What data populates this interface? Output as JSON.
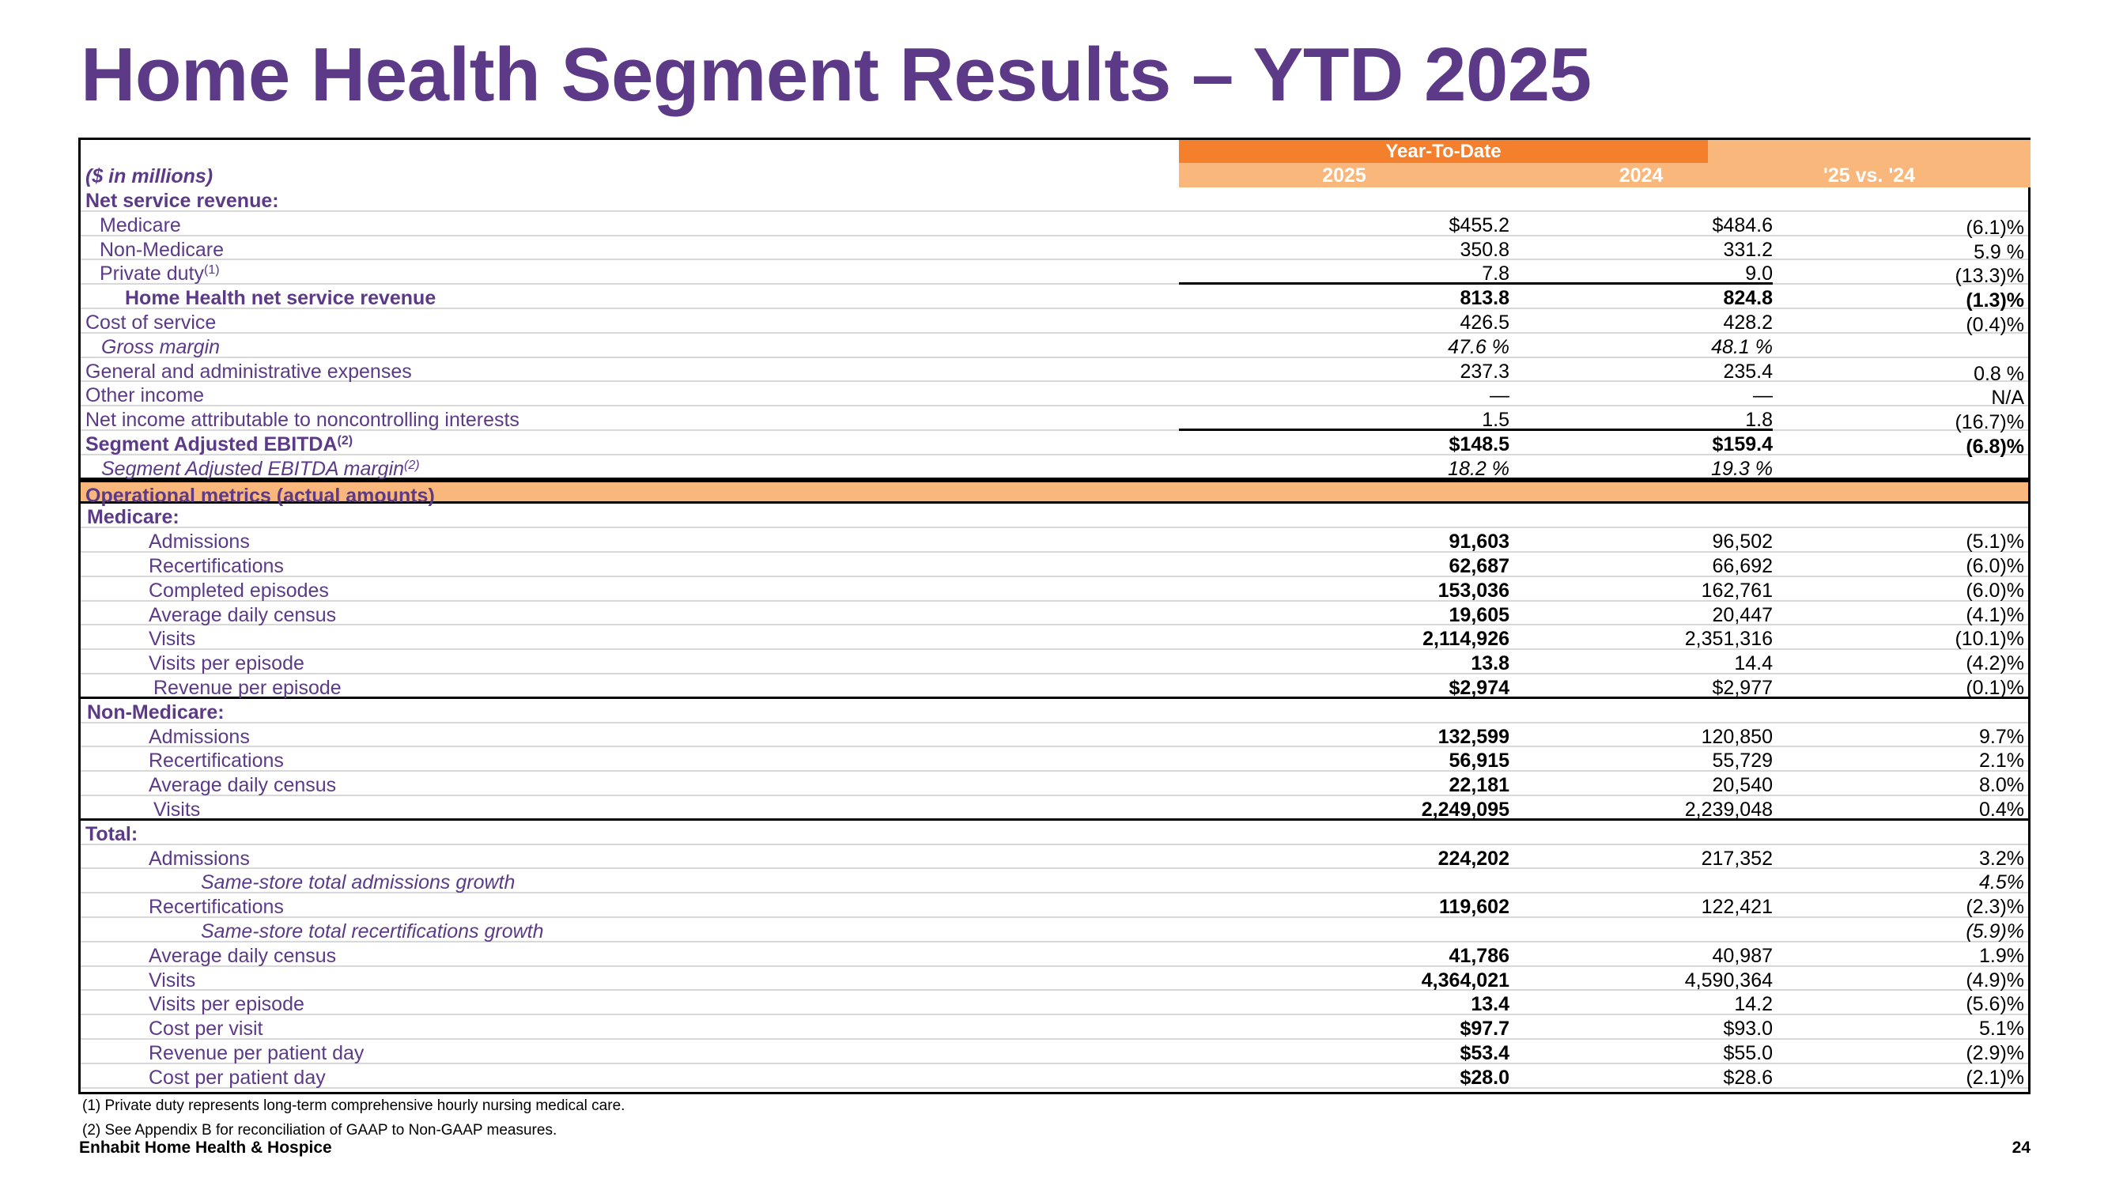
{
  "title": "Home Health Segment Results – YTD 2025",
  "header": {
    "units": "($ in millions)",
    "period": "Year-To-Date",
    "col_2025": "2025",
    "col_2024": "2024",
    "col_change": "'25 vs. '24"
  },
  "rows": [
    {
      "label": "Net service revenue:",
      "v2025": "",
      "v2024": "",
      "chg": ""
    },
    {
      "label": "Medicare",
      "v2025": "$455.2",
      "v2024": "$484.6",
      "chg": "(6.1)%"
    },
    {
      "label": "Non-Medicare",
      "v2025": "350.8",
      "v2024": "331.2",
      "chg": "5.9 %"
    },
    {
      "label": "Private duty",
      "sup": "(1)",
      "v2025": "7.8",
      "v2024": "9.0",
      "chg": "(13.3)%"
    },
    {
      "label": "Home Health net service revenue",
      "v2025": "813.8",
      "v2024": "824.8",
      "chg": "(1.3)%"
    },
    {
      "label": "Cost of service",
      "v2025": "426.5",
      "v2024": "428.2",
      "chg": "(0.4)%"
    },
    {
      "label": "Gross margin",
      "v2025": "47.6 %",
      "v2024": "48.1 %",
      "chg": ""
    },
    {
      "label": "General and administrative expenses",
      "v2025": "237.3",
      "v2024": "235.4",
      "chg": "0.8 %"
    },
    {
      "label": "Other income",
      "v2025": "—",
      "v2024": "—",
      "chg": "N/A"
    },
    {
      "label": "Net income attributable to noncontrolling interests",
      "v2025": "1.5",
      "v2024": "1.8",
      "chg": "(16.7)%"
    },
    {
      "label": "Segment Adjusted EBITDA",
      "sup": "(2)",
      "v2025": "$148.5",
      "v2024": "$159.4",
      "chg": "(6.8)%"
    },
    {
      "label": "Segment Adjusted EBITDA margin",
      "sup": "(2)",
      "v2025": "18.2 %",
      "v2024": "19.3 %",
      "chg": ""
    },
    {
      "label": "Operational metrics (actual amounts)",
      "v2025": "",
      "v2024": "",
      "chg": ""
    },
    {
      "label": "Medicare:",
      "v2025": "",
      "v2024": "",
      "chg": ""
    },
    {
      "label": "Admissions",
      "v2025": "91,603",
      "v2024": "96,502",
      "chg": "(5.1)%"
    },
    {
      "label": "Recertifications",
      "v2025": "62,687",
      "v2024": "66,692",
      "chg": "(6.0)%"
    },
    {
      "label": "Completed episodes",
      "v2025": "153,036",
      "v2024": "162,761",
      "chg": "(6.0)%"
    },
    {
      "label": "Average daily census",
      "v2025": "19,605",
      "v2024": "20,447",
      "chg": "(4.1)%"
    },
    {
      "label": "Visits",
      "v2025": "2,114,926",
      "v2024": "2,351,316",
      "chg": "(10.1)%"
    },
    {
      "label": "Visits per episode",
      "v2025": "13.8",
      "v2024": "14.4",
      "chg": "(4.2)%"
    },
    {
      "label": "Revenue per episode",
      "v2025": "$2,974",
      "v2024": "$2,977",
      "chg": "(0.1)%"
    },
    {
      "label": "Non-Medicare:",
      "v2025": "",
      "v2024": "",
      "chg": ""
    },
    {
      "label": "Admissions",
      "v2025": "132,599",
      "v2024": "120,850",
      "chg": "9.7%"
    },
    {
      "label": "Recertifications",
      "v2025": "56,915",
      "v2024": "55,729",
      "chg": "2.1%"
    },
    {
      "label": "Average daily census",
      "v2025": "22,181",
      "v2024": "20,540",
      "chg": "8.0%"
    },
    {
      "label": "Visits",
      "v2025": "2,249,095",
      "v2024": "2,239,048",
      "chg": "0.4%"
    },
    {
      "label": "Total:",
      "v2025": "",
      "v2024": "",
      "chg": ""
    },
    {
      "label": "Admissions",
      "v2025": "224,202",
      "v2024": "217,352",
      "chg": "3.2%"
    },
    {
      "label": "Same-store total admissions growth",
      "v2025": "",
      "v2024": "",
      "chg": "4.5%"
    },
    {
      "label": "Recertifications",
      "v2025": "119,602",
      "v2024": "122,421",
      "chg": "(2.3)%"
    },
    {
      "label": "Same-store total recertifications growth",
      "v2025": "",
      "v2024": "",
      "chg": "(5.9)%"
    },
    {
      "label": "Average daily census",
      "v2025": "41,786",
      "v2024": "40,987",
      "chg": "1.9%"
    },
    {
      "label": "Visits",
      "v2025": "4,364,021",
      "v2024": "4,590,364",
      "chg": "(4.9)%"
    },
    {
      "label": "Visits per episode",
      "v2025": "13.4",
      "v2024": "14.2",
      "chg": "(5.6)%"
    },
    {
      "label": "Cost per visit",
      "v2025": "$97.7",
      "v2024": "$93.0",
      "chg": "5.1%"
    },
    {
      "label": "Revenue per patient day",
      "v2025": "$53.4",
      "v2024": "$55.0",
      "chg": "(2.9)%"
    },
    {
      "label": "Cost per patient day",
      "v2025": "$28.0",
      "v2024": "$28.6",
      "chg": "(2.1)%"
    }
  ],
  "footnotes": [
    "(1) Private duty represents long-term comprehensive hourly nursing medical care.",
    "(2) See Appendix B for reconciliation of GAAP to Non-GAAP measures."
  ],
  "footer": {
    "company": "Enhabit Home Health & Hospice",
    "page": "24"
  },
  "colors": {
    "title": "#5c3a87",
    "header_dark": "#f47f2c",
    "header_light": "#fab77b"
  }
}
